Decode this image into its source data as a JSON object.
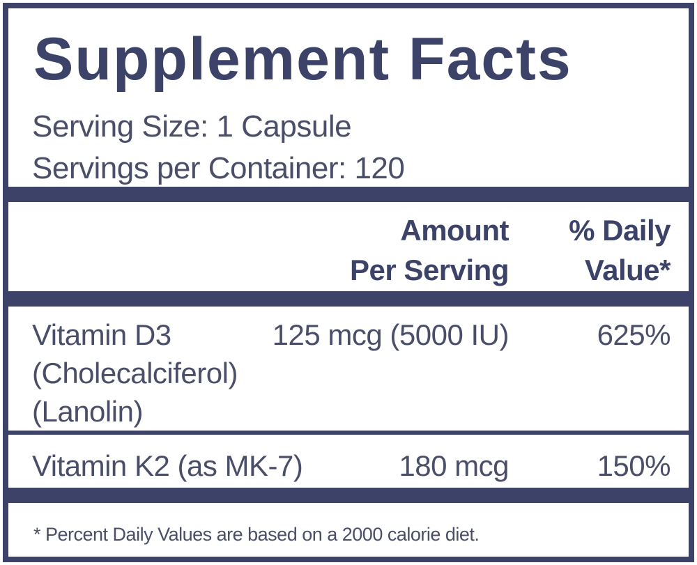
{
  "header": {
    "title": "Supplement Facts",
    "serving_size": "Serving Size: 1 Capsule",
    "servings_per_container": "Servings per Container: 120"
  },
  "table": {
    "columns": [
      [
        "Amount",
        "Per Serving"
      ],
      [
        "% Daily",
        "Value*"
      ]
    ],
    "rows": [
      {
        "name": [
          "Vitamin D3",
          "(Cholecalciferol)",
          "(Lanolin)"
        ],
        "amount": "125 mcg (5000 IU)",
        "daily_value": "625%"
      },
      {
        "name": [
          "Vitamin K2 (as MK-7)"
        ],
        "amount": "180 mcg",
        "daily_value": "150%"
      }
    ]
  },
  "footnote": "* Percent Daily Values are based on a 2000 calorie diet."
}
